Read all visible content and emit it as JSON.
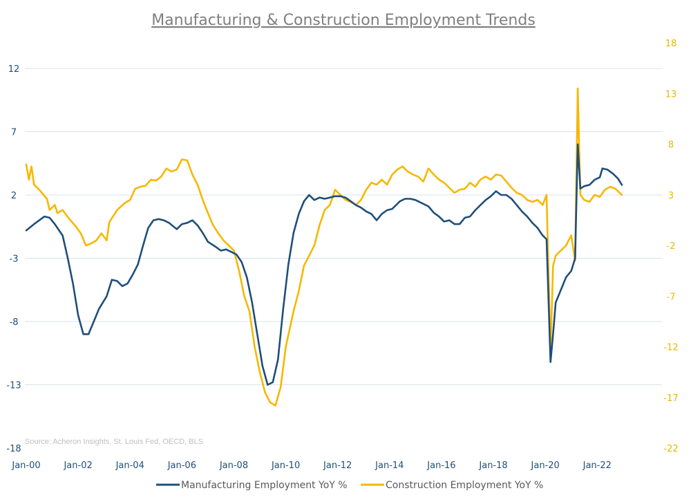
{
  "chart_data": {
    "type": "line",
    "title": "Manufacturing & Construction Employment Trends",
    "source": "Source: Acheron Insights, St. Louis Fed, OECD, BLS",
    "x_ticks": [
      "Jan-00",
      "Jan-02",
      "Jan-04",
      "Jan-06",
      "Jan-08",
      "Jan-10",
      "Jan-12",
      "Jan-14",
      "Jan-16",
      "Jan-18",
      "Jan-20",
      "Jan-22"
    ],
    "left_axis": {
      "ylim": [
        -18,
        12
      ],
      "ticks": [
        "12",
        "7",
        "2",
        "-3",
        "-8",
        "-13",
        "-18"
      ],
      "color": "#1f4e79"
    },
    "right_axis": {
      "ylim": [
        -22,
        18
      ],
      "ticks": [
        "18",
        "13",
        "8",
        "3",
        "-2",
        "-7",
        "-12",
        "-17",
        "-22"
      ],
      "color": "#f5b800"
    },
    "grid": true,
    "legend_position": "bottom",
    "xlim": [
      2000.0,
      2023.75
    ],
    "series": [
      {
        "name": "Manufacturing Employment YoY %",
        "axis": "left",
        "color": "#1f4e79",
        "points": [
          [
            2000.0,
            -0.8
          ],
          [
            2000.3,
            -0.3
          ],
          [
            2000.5,
            0.0
          ],
          [
            2000.7,
            0.3
          ],
          [
            2000.9,
            0.2
          ],
          [
            2001.1,
            -0.3
          ],
          [
            2001.4,
            -1.2
          ],
          [
            2001.6,
            -3.0
          ],
          [
            2001.8,
            -5.0
          ],
          [
            2002.0,
            -7.5
          ],
          [
            2002.2,
            -9.0
          ],
          [
            2002.4,
            -9.0
          ],
          [
            2002.6,
            -8.0
          ],
          [
            2002.8,
            -7.0
          ],
          [
            2003.1,
            -6.0
          ],
          [
            2003.3,
            -4.7
          ],
          [
            2003.5,
            -4.8
          ],
          [
            2003.7,
            -5.2
          ],
          [
            2003.9,
            -5.0
          ],
          [
            2004.1,
            -4.3
          ],
          [
            2004.3,
            -3.5
          ],
          [
            2004.5,
            -2.0
          ],
          [
            2004.7,
            -0.6
          ],
          [
            2004.9,
            0.0
          ],
          [
            2005.1,
            0.1
          ],
          [
            2005.3,
            0.0
          ],
          [
            2005.5,
            -0.2
          ],
          [
            2005.8,
            -0.7
          ],
          [
            2006.0,
            -0.3
          ],
          [
            2006.2,
            -0.2
          ],
          [
            2006.4,
            0.0
          ],
          [
            2006.6,
            -0.4
          ],
          [
            2006.8,
            -1.0
          ],
          [
            2007.0,
            -1.7
          ],
          [
            2007.3,
            -2.1
          ],
          [
            2007.5,
            -2.4
          ],
          [
            2007.7,
            -2.3
          ],
          [
            2007.9,
            -2.5
          ],
          [
            2008.1,
            -2.7
          ],
          [
            2008.3,
            -3.3
          ],
          [
            2008.5,
            -4.5
          ],
          [
            2008.7,
            -6.5
          ],
          [
            2008.9,
            -9.0
          ],
          [
            2009.1,
            -11.5
          ],
          [
            2009.3,
            -13.0
          ],
          [
            2009.5,
            -12.8
          ],
          [
            2009.7,
            -11.0
          ],
          [
            2009.9,
            -7.0
          ],
          [
            2010.1,
            -3.5
          ],
          [
            2010.3,
            -1.0
          ],
          [
            2010.5,
            0.5
          ],
          [
            2010.7,
            1.5
          ],
          [
            2010.9,
            2.0
          ],
          [
            2011.1,
            1.6
          ],
          [
            2011.3,
            1.8
          ],
          [
            2011.5,
            1.7
          ],
          [
            2011.7,
            1.8
          ],
          [
            2011.9,
            1.9
          ],
          [
            2012.1,
            1.9
          ],
          [
            2012.3,
            1.8
          ],
          [
            2012.5,
            1.5
          ],
          [
            2012.7,
            1.2
          ],
          [
            2012.9,
            1.0
          ],
          [
            2013.1,
            0.7
          ],
          [
            2013.3,
            0.5
          ],
          [
            2013.5,
            0.0
          ],
          [
            2013.7,
            0.5
          ],
          [
            2013.9,
            0.8
          ],
          [
            2014.1,
            0.9
          ],
          [
            2014.4,
            1.5
          ],
          [
            2014.6,
            1.7
          ],
          [
            2014.8,
            1.7
          ],
          [
            2015.0,
            1.6
          ],
          [
            2015.3,
            1.3
          ],
          [
            2015.5,
            1.1
          ],
          [
            2015.7,
            0.6
          ],
          [
            2015.9,
            0.3
          ],
          [
            2016.1,
            -0.1
          ],
          [
            2016.3,
            0.0
          ],
          [
            2016.5,
            -0.3
          ],
          [
            2016.7,
            -0.3
          ],
          [
            2016.9,
            0.2
          ],
          [
            2017.1,
            0.3
          ],
          [
            2017.3,
            0.8
          ],
          [
            2017.5,
            1.2
          ],
          [
            2017.7,
            1.6
          ],
          [
            2017.9,
            1.9
          ],
          [
            2018.1,
            2.3
          ],
          [
            2018.3,
            2.0
          ],
          [
            2018.5,
            2.0
          ],
          [
            2018.7,
            1.7
          ],
          [
            2018.9,
            1.2
          ],
          [
            2019.1,
            0.7
          ],
          [
            2019.3,
            0.3
          ],
          [
            2019.5,
            -0.2
          ],
          [
            2019.7,
            -0.6
          ],
          [
            2019.9,
            -1.2
          ],
          [
            2020.05,
            -1.5
          ],
          [
            2020.2,
            -11.2
          ],
          [
            2020.3,
            -9.0
          ],
          [
            2020.4,
            -6.5
          ],
          [
            2020.6,
            -5.5
          ],
          [
            2020.8,
            -4.5
          ],
          [
            2021.0,
            -4.0
          ],
          [
            2021.15,
            -3.0
          ],
          [
            2021.25,
            6.0
          ],
          [
            2021.35,
            2.5
          ],
          [
            2021.5,
            2.7
          ],
          [
            2021.7,
            2.8
          ],
          [
            2021.9,
            3.2
          ],
          [
            2022.1,
            3.4
          ],
          [
            2022.2,
            4.1
          ],
          [
            2022.4,
            4.0
          ],
          [
            2022.6,
            3.7
          ],
          [
            2022.8,
            3.3
          ],
          [
            2022.95,
            2.8
          ]
        ]
      },
      {
        "name": "Construction Employment YoY %",
        "axis": "right",
        "color": "#f5b800",
        "points": [
          [
            2000.0,
            6.0
          ],
          [
            2000.1,
            4.5
          ],
          [
            2000.2,
            5.8
          ],
          [
            2000.3,
            4.0
          ],
          [
            2000.5,
            3.5
          ],
          [
            2000.8,
            2.6
          ],
          [
            2000.9,
            1.5
          ],
          [
            2001.1,
            2.0
          ],
          [
            2001.2,
            1.2
          ],
          [
            2001.4,
            1.5
          ],
          [
            2001.6,
            0.8
          ],
          [
            2001.9,
            -0.1
          ],
          [
            2002.1,
            -0.8
          ],
          [
            2002.3,
            -2.0
          ],
          [
            2002.5,
            -1.8
          ],
          [
            2002.7,
            -1.5
          ],
          [
            2002.9,
            -0.8
          ],
          [
            2003.1,
            -1.5
          ],
          [
            2003.2,
            0.3
          ],
          [
            2003.5,
            1.5
          ],
          [
            2003.8,
            2.2
          ],
          [
            2004.0,
            2.5
          ],
          [
            2004.2,
            3.6
          ],
          [
            2004.4,
            3.8
          ],
          [
            2004.6,
            3.9
          ],
          [
            2004.8,
            4.5
          ],
          [
            2005.0,
            4.4
          ],
          [
            2005.2,
            4.8
          ],
          [
            2005.4,
            5.6
          ],
          [
            2005.6,
            5.3
          ],
          [
            2005.8,
            5.5
          ],
          [
            2006.0,
            6.5
          ],
          [
            2006.2,
            6.4
          ],
          [
            2006.4,
            5.0
          ],
          [
            2006.6,
            4.0
          ],
          [
            2006.8,
            2.5
          ],
          [
            2007.0,
            1.2
          ],
          [
            2007.2,
            0.0
          ],
          [
            2007.4,
            -0.8
          ],
          [
            2007.6,
            -1.5
          ],
          [
            2007.8,
            -2.0
          ],
          [
            2008.0,
            -2.5
          ],
          [
            2008.2,
            -4.5
          ],
          [
            2008.4,
            -7.0
          ],
          [
            2008.6,
            -8.5
          ],
          [
            2008.8,
            -12.0
          ],
          [
            2009.0,
            -14.5
          ],
          [
            2009.2,
            -16.5
          ],
          [
            2009.4,
            -17.5
          ],
          [
            2009.6,
            -17.8
          ],
          [
            2009.8,
            -16.0
          ],
          [
            2010.0,
            -12.0
          ],
          [
            2010.3,
            -8.5
          ],
          [
            2010.5,
            -6.5
          ],
          [
            2010.7,
            -4.0
          ],
          [
            2010.9,
            -3.0
          ],
          [
            2011.1,
            -2.0
          ],
          [
            2011.3,
            0.0
          ],
          [
            2011.5,
            1.5
          ],
          [
            2011.7,
            2.0
          ],
          [
            2011.9,
            3.5
          ],
          [
            2012.1,
            3.0
          ],
          [
            2012.3,
            2.5
          ],
          [
            2012.5,
            2.3
          ],
          [
            2012.7,
            2.0
          ],
          [
            2012.9,
            2.5
          ],
          [
            2013.1,
            3.5
          ],
          [
            2013.3,
            4.2
          ],
          [
            2013.5,
            4.0
          ],
          [
            2013.7,
            4.5
          ],
          [
            2013.9,
            4.0
          ],
          [
            2014.1,
            5.0
          ],
          [
            2014.3,
            5.5
          ],
          [
            2014.5,
            5.8
          ],
          [
            2014.7,
            5.3
          ],
          [
            2014.9,
            5.0
          ],
          [
            2015.1,
            4.8
          ],
          [
            2015.3,
            4.3
          ],
          [
            2015.5,
            5.6
          ],
          [
            2015.7,
            5.0
          ],
          [
            2015.9,
            4.5
          ],
          [
            2016.1,
            4.2
          ],
          [
            2016.3,
            3.7
          ],
          [
            2016.5,
            3.2
          ],
          [
            2016.7,
            3.5
          ],
          [
            2016.9,
            3.6
          ],
          [
            2017.1,
            4.2
          ],
          [
            2017.3,
            3.8
          ],
          [
            2017.5,
            4.5
          ],
          [
            2017.7,
            4.8
          ],
          [
            2017.9,
            4.5
          ],
          [
            2018.1,
            5.0
          ],
          [
            2018.3,
            4.9
          ],
          [
            2018.5,
            4.3
          ],
          [
            2018.7,
            3.7
          ],
          [
            2018.9,
            3.2
          ],
          [
            2019.1,
            3.0
          ],
          [
            2019.3,
            2.5
          ],
          [
            2019.5,
            2.3
          ],
          [
            2019.7,
            2.5
          ],
          [
            2019.9,
            2.0
          ],
          [
            2020.05,
            3.0
          ],
          [
            2020.2,
            -12.5
          ],
          [
            2020.3,
            -4.0
          ],
          [
            2020.4,
            -3.0
          ],
          [
            2020.6,
            -2.5
          ],
          [
            2020.8,
            -2.0
          ],
          [
            2021.0,
            -1.0
          ],
          [
            2021.15,
            -3.5
          ],
          [
            2021.25,
            13.5
          ],
          [
            2021.35,
            3.0
          ],
          [
            2021.5,
            2.5
          ],
          [
            2021.7,
            2.3
          ],
          [
            2021.9,
            3.0
          ],
          [
            2022.1,
            2.8
          ],
          [
            2022.3,
            3.5
          ],
          [
            2022.5,
            3.8
          ],
          [
            2022.7,
            3.6
          ],
          [
            2022.95,
            3.0
          ]
        ]
      }
    ]
  }
}
